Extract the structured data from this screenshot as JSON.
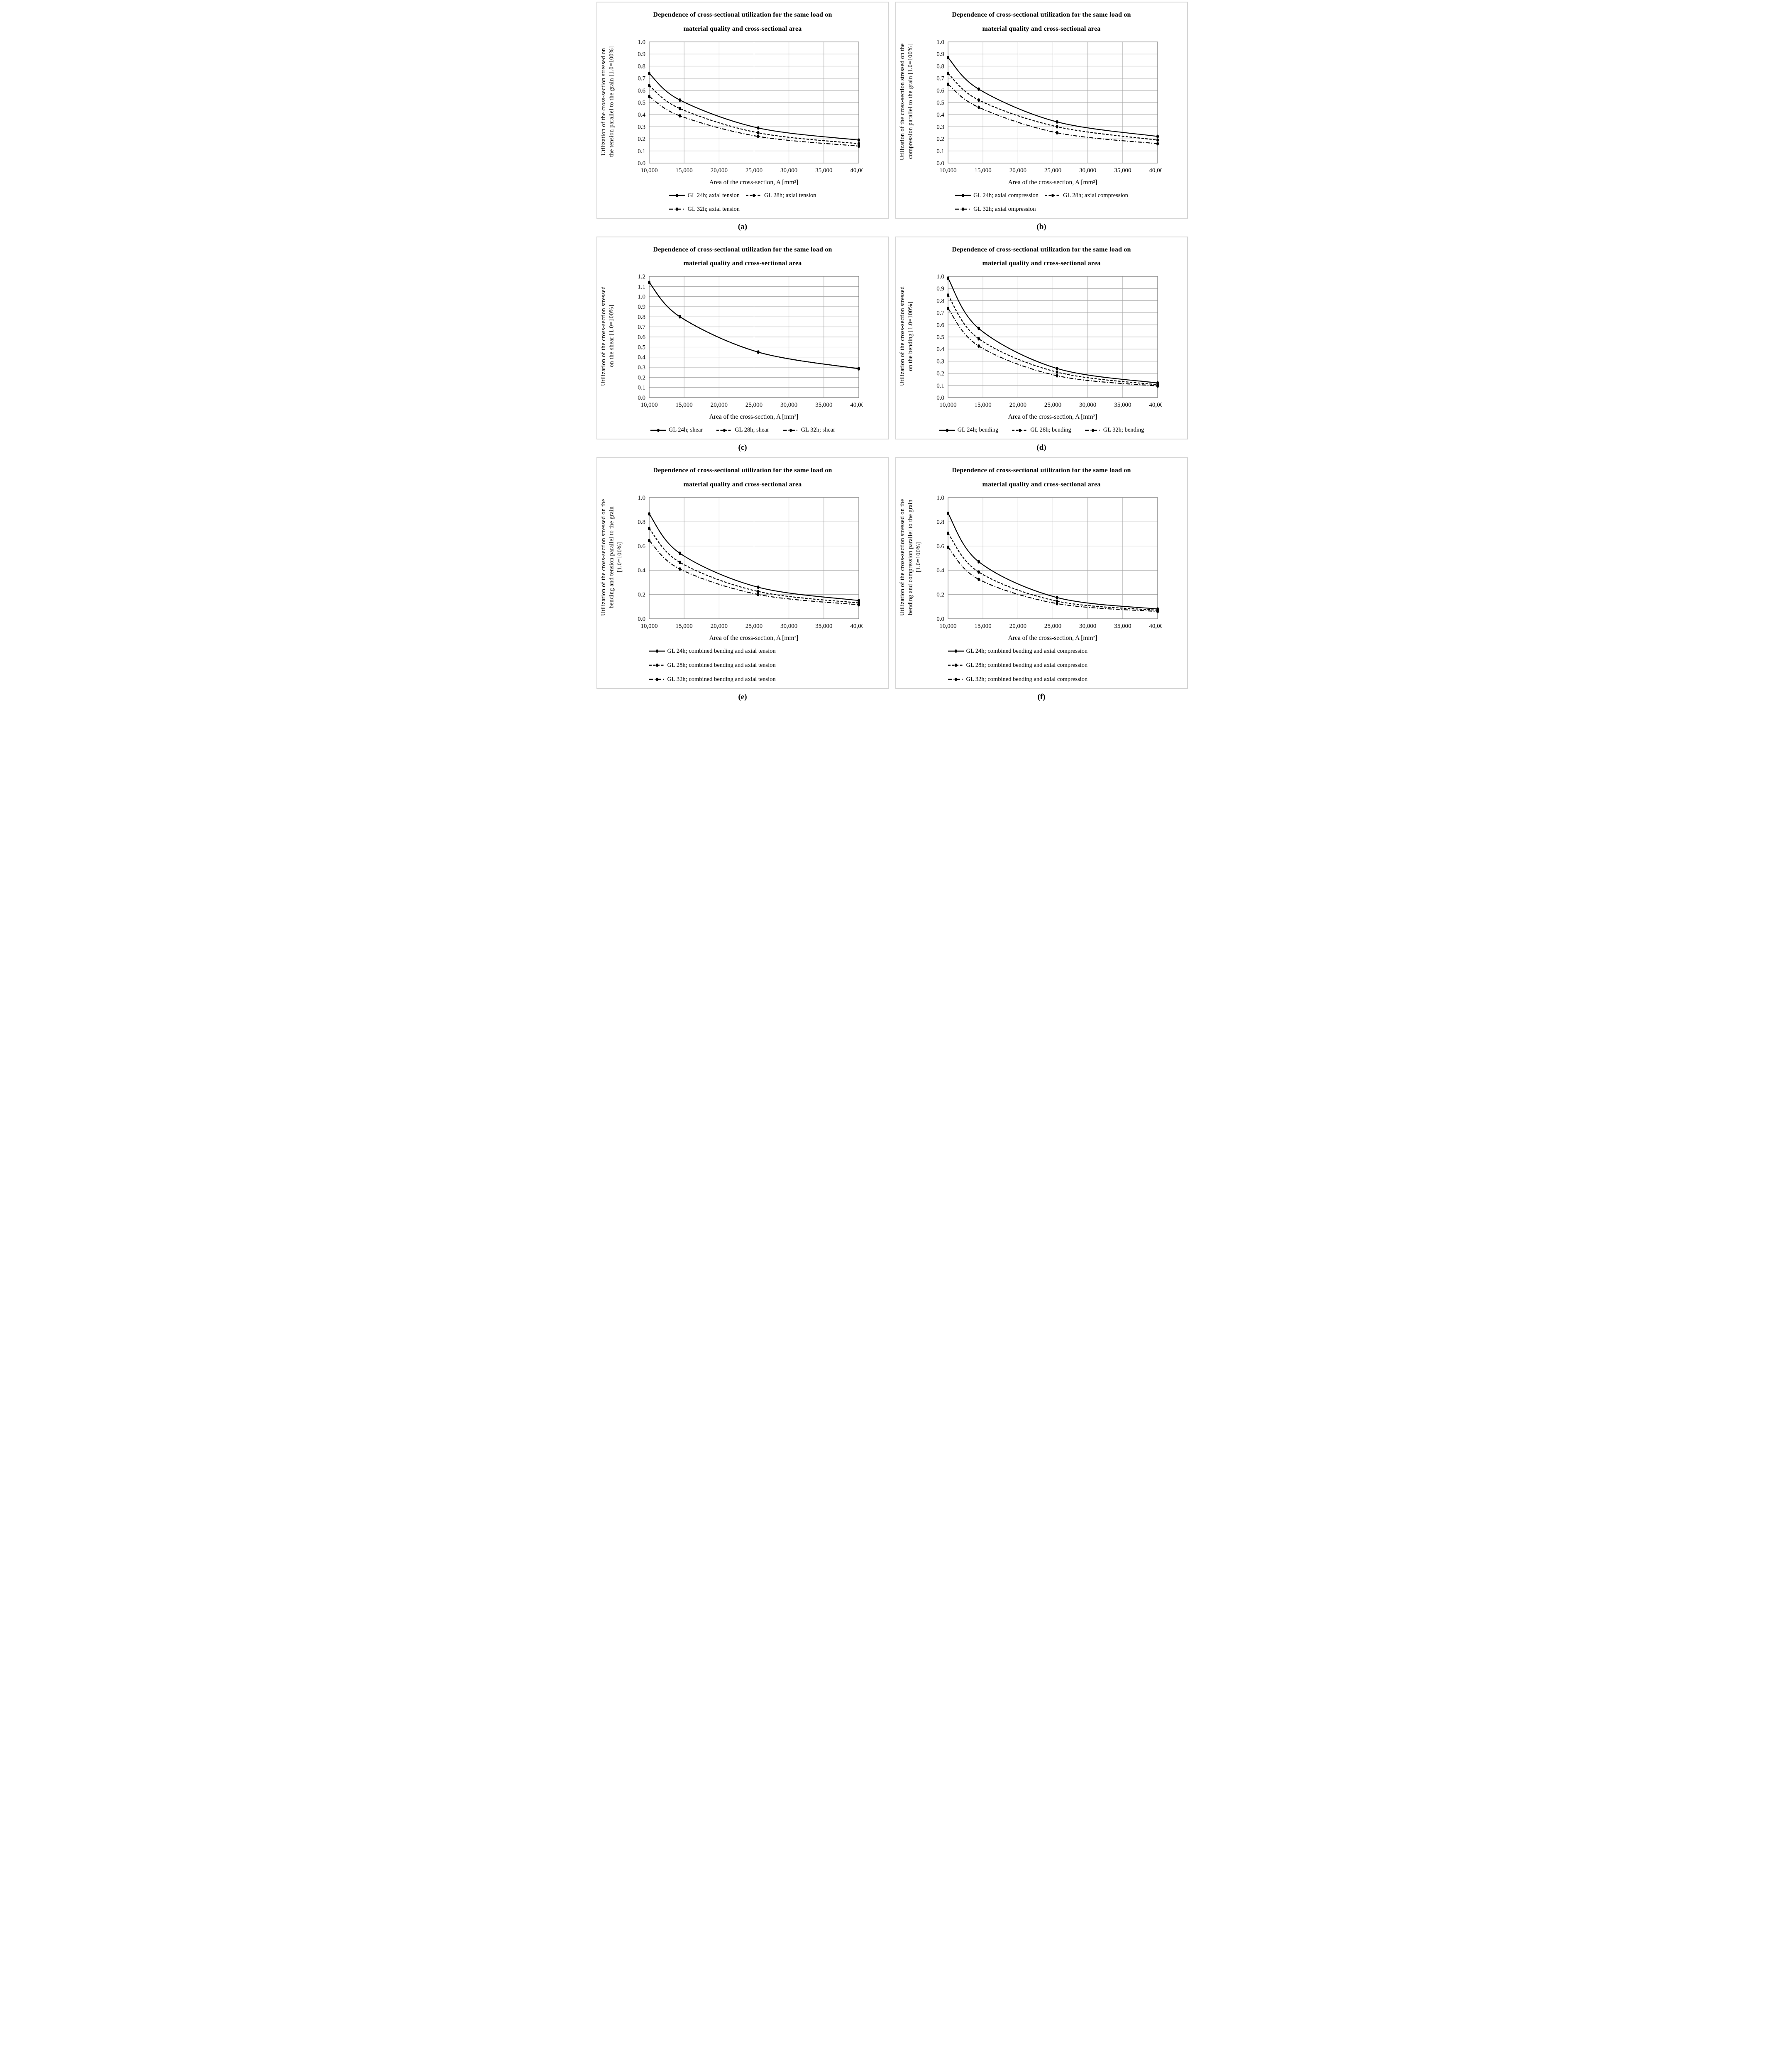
{
  "figure": {
    "title_lines": [
      "Dependence of cross-sectional utilization for the same load on",
      "material quality and cross-sectional area"
    ],
    "xlabel": "Area of the cross-section, A [mm²]",
    "x_tick_labels": [
      "10,000",
      "15,000",
      "20,000",
      "25,000",
      "30,000",
      "35,000",
      "40,000"
    ],
    "x_tick_values": [
      10000,
      15000,
      20000,
      25000,
      30000,
      35000,
      40000
    ]
  },
  "colors": {
    "curve": "#000000",
    "grid": "#a6a6a6",
    "plot_border": "#7f7f7f",
    "panel_border": "#d5d5d5",
    "text": "#000000"
  },
  "chart_data": [
    {
      "type": "line",
      "panel_label": "(a)",
      "ylabel_lines": [
        "Utilization of the cross-section stressed on",
        "the tension parallel to the grain [1.0=100%]"
      ],
      "xlim": [
        10000,
        40000
      ],
      "ylim": [
        0,
        1.0
      ],
      "ytick_step": 0.1,
      "x": [
        10000,
        14400,
        25600,
        40000
      ],
      "series": [
        {
          "name": "GL 24h; axial tension",
          "style": "solid",
          "values": [
            0.74,
            0.52,
            0.29,
            0.19
          ]
        },
        {
          "name": "GL 28h; axial tension",
          "style": "dashed",
          "values": [
            0.64,
            0.45,
            0.25,
            0.16
          ]
        },
        {
          "name": "GL 32h; axial tension",
          "style": "dashdot",
          "values": [
            0.55,
            0.39,
            0.22,
            0.14
          ]
        }
      ],
      "legend_layout": "two-col"
    },
    {
      "type": "line",
      "panel_label": "(b)",
      "ylabel_lines": [
        "Utilization of the cross-section stressed on the",
        "compression parallel to the grain [1.0=100%]"
      ],
      "xlim": [
        10000,
        40000
      ],
      "ylim": [
        0,
        1.0
      ],
      "ytick_step": 0.1,
      "x": [
        10000,
        14400,
        25600,
        40000
      ],
      "series": [
        {
          "name": "GL 24h; axial compression",
          "style": "solid",
          "values": [
            0.87,
            0.61,
            0.34,
            0.22
          ]
        },
        {
          "name": "GL 28h; axial compression",
          "style": "dashed",
          "values": [
            0.74,
            0.52,
            0.3,
            0.19
          ]
        },
        {
          "name": "GL 32h; axial ompression",
          "style": "dashdot",
          "values": [
            0.65,
            0.46,
            0.25,
            0.16
          ]
        }
      ],
      "legend_layout": "two-col"
    },
    {
      "type": "line",
      "panel_label": "(c)",
      "ylabel_lines": [
        "Utilization of the cross-section stressed",
        "on the shear [1.0=100%]"
      ],
      "xlim": [
        10000,
        40000
      ],
      "ylim": [
        0,
        1.2
      ],
      "ytick_step": 0.1,
      "x": [
        10000,
        14400,
        25600,
        40000
      ],
      "series": [
        {
          "name": "GL 24h; shear",
          "style": "solid",
          "values": [
            1.14,
            0.8,
            0.45,
            0.285
          ]
        },
        {
          "name": "GL 28h; shear",
          "style": "dashed",
          "values": [
            1.14,
            0.8,
            0.45,
            0.285
          ]
        },
        {
          "name": "GL 32h; shear",
          "style": "dashdot",
          "values": [
            1.14,
            0.8,
            0.45,
            0.285
          ]
        }
      ],
      "legend_layout": "row"
    },
    {
      "type": "line",
      "panel_label": "(d)",
      "ylabel_lines": [
        "Utilization of the cross-section stressed",
        "on the bending [1.0=100%]"
      ],
      "xlim": [
        10000,
        40000
      ],
      "ylim": [
        0,
        1.0
      ],
      "ytick_step": 0.1,
      "x": [
        10000,
        14400,
        25600,
        40000
      ],
      "series": [
        {
          "name": "GL 24h; bending",
          "style": "solid",
          "values": [
            0.985,
            0.57,
            0.24,
            0.12
          ]
        },
        {
          "name": "GL 28h; bending",
          "style": "dashed",
          "values": [
            0.845,
            0.485,
            0.21,
            0.105
          ]
        },
        {
          "name": "GL 32h; bending",
          "style": "dashdot",
          "values": [
            0.735,
            0.425,
            0.18,
            0.095
          ]
        }
      ],
      "legend_layout": "row"
    },
    {
      "type": "line",
      "panel_label": "(e)",
      "ylabel_lines": [
        "Utilization of the cross-section stressed on the",
        "bending and tension parallel to the grain",
        "[1.0=100%]"
      ],
      "xlim": [
        10000,
        40000
      ],
      "ylim": [
        0,
        1.0
      ],
      "ytick_step": 0.2,
      "x": [
        10000,
        14400,
        25600,
        40000
      ],
      "series": [
        {
          "name": "GL 24h; combined bending and axial tension",
          "style": "solid",
          "values": [
            0.865,
            0.54,
            0.26,
            0.15
          ]
        },
        {
          "name": "GL 28h; combined bending and axial tension",
          "style": "dashed",
          "values": [
            0.745,
            0.465,
            0.225,
            0.13
          ]
        },
        {
          "name": "GL 32h; combined bending and axial tension",
          "style": "dashdot",
          "values": [
            0.645,
            0.41,
            0.2,
            0.115
          ]
        }
      ],
      "legend_layout": "column"
    },
    {
      "type": "line",
      "panel_label": "(f)",
      "ylabel_lines": [
        "Utilization of the cross-section stressed on the",
        "bending and compression parallel to the grain",
        "[1.0=100%]"
      ],
      "xlim": [
        10000,
        40000
      ],
      "ylim": [
        0,
        1.0
      ],
      "ytick_step": 0.2,
      "x": [
        10000,
        14400,
        25600,
        40000
      ],
      "series": [
        {
          "name": "GL 24h; combined bending and axial compression",
          "style": "solid",
          "values": [
            0.87,
            0.47,
            0.175,
            0.08
          ]
        },
        {
          "name": "GL 28h; combined bending and axial compression",
          "style": "dashed",
          "values": [
            0.705,
            0.385,
            0.145,
            0.07
          ]
        },
        {
          "name": "GL 32h; combined bending and axial compression",
          "style": "dashdot",
          "values": [
            0.59,
            0.325,
            0.125,
            0.06
          ]
        }
      ],
      "legend_layout": "column"
    }
  ]
}
